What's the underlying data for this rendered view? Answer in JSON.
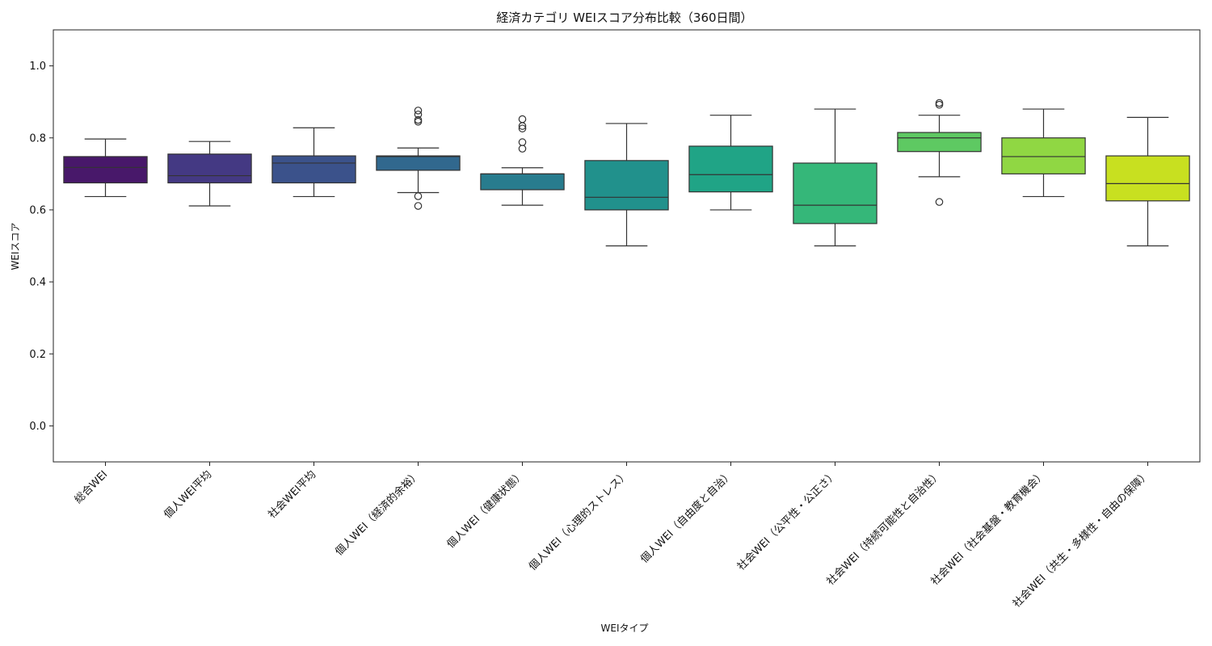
{
  "chart_data": {
    "type": "box",
    "title": "経済カテゴリ WEIスコア分布比較（360日間）",
    "xlabel": "WEIタイプ",
    "ylabel": "WEIスコア",
    "ylim": [
      -0.1,
      1.1
    ],
    "yticks": [
      0.0,
      0.2,
      0.4,
      0.6,
      0.8,
      1.0
    ],
    "ytick_labels": [
      "0.0",
      "0.2",
      "0.4",
      "0.6",
      "0.8",
      "1.0"
    ],
    "grid": false,
    "categories": [
      "総合WEI",
      "個人WEI平均",
      "社会WEI平均",
      "個人WEI（経済的余裕）",
      "個人WEI（健康状態）",
      "個人WEI（心理的ストレス）",
      "個人WEI（自由度と自治）",
      "社会WEI（公平性・公正さ）",
      "社会WEI（持続可能性と自治性）",
      "社会WEI（社会基盤・教育機会）",
      "社会WEI（共生・多様性・自由の保障）"
    ],
    "boxes": [
      {
        "whisker_low": 0.637,
        "q1": 0.675,
        "median": 0.718,
        "q3": 0.748,
        "whisker_high": 0.797,
        "outliers": [],
        "color": "#48186a"
      },
      {
        "whisker_low": 0.611,
        "q1": 0.675,
        "median": 0.695,
        "q3": 0.755,
        "whisker_high": 0.79,
        "outliers": [],
        "color": "#443983"
      },
      {
        "whisker_low": 0.637,
        "q1": 0.675,
        "median": 0.73,
        "q3": 0.75,
        "whisker_high": 0.828,
        "outliers": [],
        "color": "#3b528b"
      },
      {
        "whisker_low": 0.648,
        "q1": 0.71,
        "median": 0.748,
        "q3": 0.75,
        "whisker_high": 0.772,
        "outliers": [
          0.611,
          0.638,
          0.845,
          0.85,
          0.865,
          0.876
        ],
        "color": "#31688e"
      },
      {
        "whisker_low": 0.613,
        "q1": 0.656,
        "median": 0.7,
        "q3": 0.7,
        "whisker_high": 0.717,
        "outliers": [
          0.77,
          0.788,
          0.826,
          0.833,
          0.852
        ],
        "color": "#287c8e"
      },
      {
        "whisker_low": 0.5,
        "q1": 0.6,
        "median": 0.635,
        "q3": 0.737,
        "whisker_high": 0.84,
        "outliers": [],
        "color": "#21918c"
      },
      {
        "whisker_low": 0.6,
        "q1": 0.65,
        "median": 0.698,
        "q3": 0.777,
        "whisker_high": 0.863,
        "outliers": [],
        "color": "#20a486"
      },
      {
        "whisker_low": 0.5,
        "q1": 0.562,
        "median": 0.613,
        "q3": 0.73,
        "whisker_high": 0.88,
        "outliers": [],
        "color": "#35b779"
      },
      {
        "whisker_low": 0.692,
        "q1": 0.762,
        "median": 0.8,
        "q3": 0.815,
        "whisker_high": 0.863,
        "outliers": [
          0.622,
          0.892,
          0.897
        ],
        "color": "#5ec962"
      },
      {
        "whisker_low": 0.637,
        "q1": 0.7,
        "median": 0.748,
        "q3": 0.8,
        "whisker_high": 0.88,
        "outliers": [],
        "color": "#90d743"
      },
      {
        "whisker_low": 0.5,
        "q1": 0.625,
        "median": 0.673,
        "q3": 0.75,
        "whisker_high": 0.857,
        "outliers": [],
        "color": "#c8e020"
      }
    ]
  }
}
